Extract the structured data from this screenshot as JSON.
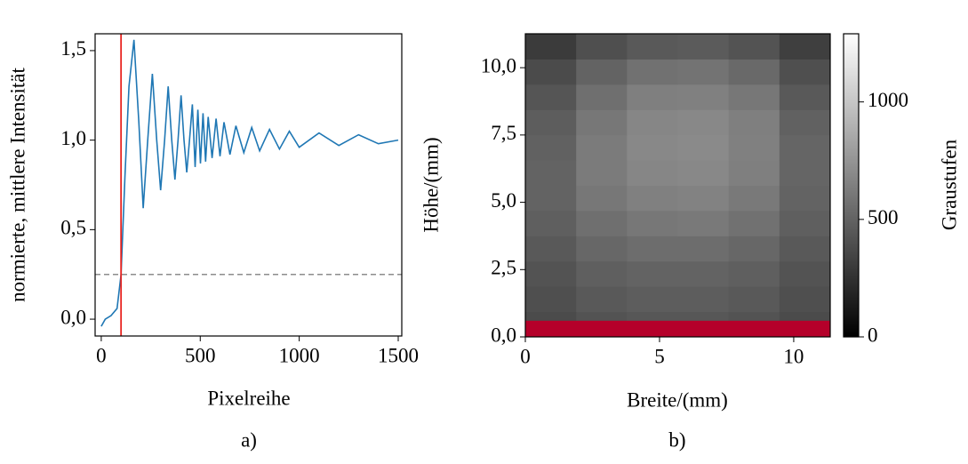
{
  "chart_data": [
    {
      "type": "line",
      "caption": "a)",
      "xlabel": "Pixelreihe",
      "ylabel": "normierte, mittlere Intensität",
      "xlim": [
        -31,
        1518
      ],
      "ylim": [
        -0.094,
        1.594
      ],
      "xticks": [
        0,
        500,
        1000,
        1500
      ],
      "yticks": [
        {
          "value": 0,
          "label": "0,0"
        },
        {
          "value": 0.5,
          "label": "0,5"
        },
        {
          "value": 1,
          "label": "1,0"
        },
        {
          "value": 1.5,
          "label": "1,5"
        }
      ],
      "color": "#1f77b4",
      "vline": 100,
      "vline_color": "#e8231f",
      "hline": 0.25,
      "hline_color": "#8c8c8c",
      "x": [
        0,
        20,
        50,
        80,
        100,
        120,
        140,
        165,
        190,
        212,
        235,
        258,
        280,
        300,
        320,
        338,
        356,
        372,
        388,
        403,
        418,
        432,
        446,
        460,
        474,
        488,
        501,
        514,
        527,
        540,
        560,
        580,
        600,
        620,
        650,
        680,
        720,
        760,
        800,
        850,
        900,
        950,
        1000,
        1100,
        1200,
        1300,
        1400,
        1500
      ],
      "values": [
        -0.04,
        0.0,
        0.02,
        0.06,
        0.25,
        0.8,
        1.3,
        1.56,
        1.1,
        0.62,
        1.0,
        1.37,
        1.0,
        0.72,
        1.0,
        1.3,
        1.0,
        0.78,
        1.0,
        1.25,
        1.0,
        0.82,
        1.0,
        1.2,
        0.85,
        1.17,
        0.87,
        1.15,
        0.88,
        1.13,
        0.9,
        1.12,
        0.91,
        1.1,
        0.92,
        1.08,
        0.93,
        1.07,
        0.94,
        1.06,
        0.95,
        1.05,
        0.96,
        1.04,
        0.97,
        1.03,
        0.98,
        1.0
      ]
    },
    {
      "type": "heatmap",
      "caption": "b)",
      "xlabel": "Breite/(mm)",
      "ylabel": "Höhe/(mm)",
      "colorbar_label": "Graustufen",
      "xlim": [
        0,
        11.36
      ],
      "ylim": [
        0,
        11.26
      ],
      "clim": [
        0,
        1290
      ],
      "xticks": [
        0,
        5,
        10
      ],
      "yticks": [
        {
          "value": 0,
          "label": "0,0"
        },
        {
          "value": 2.5,
          "label": "2,5"
        },
        {
          "value": 5,
          "label": "5,0"
        },
        {
          "value": 7.5,
          "label": "7,5"
        },
        {
          "value": 10,
          "label": "10,0"
        }
      ],
      "cticks": [
        0,
        500,
        1000
      ],
      "mask_top": 0.6,
      "mask_color": "#b5002a",
      "z": [
        [
          380,
          420,
          440,
          440,
          420,
          380
        ],
        [
          400,
          450,
          470,
          470,
          450,
          400
        ],
        [
          420,
          480,
          500,
          500,
          480,
          420
        ],
        [
          450,
          520,
          550,
          550,
          520,
          450
        ],
        [
          480,
          560,
          600,
          610,
          570,
          480
        ],
        [
          500,
          600,
          650,
          660,
          610,
          500
        ],
        [
          500,
          620,
          680,
          690,
          640,
          510
        ],
        [
          490,
          620,
          690,
          700,
          650,
          510
        ],
        [
          470,
          600,
          680,
          690,
          640,
          490
        ],
        [
          430,
          560,
          640,
          650,
          600,
          450
        ],
        [
          380,
          500,
          570,
          580,
          530,
          400
        ],
        [
          300,
          400,
          450,
          460,
          420,
          320
        ]
      ]
    }
  ]
}
